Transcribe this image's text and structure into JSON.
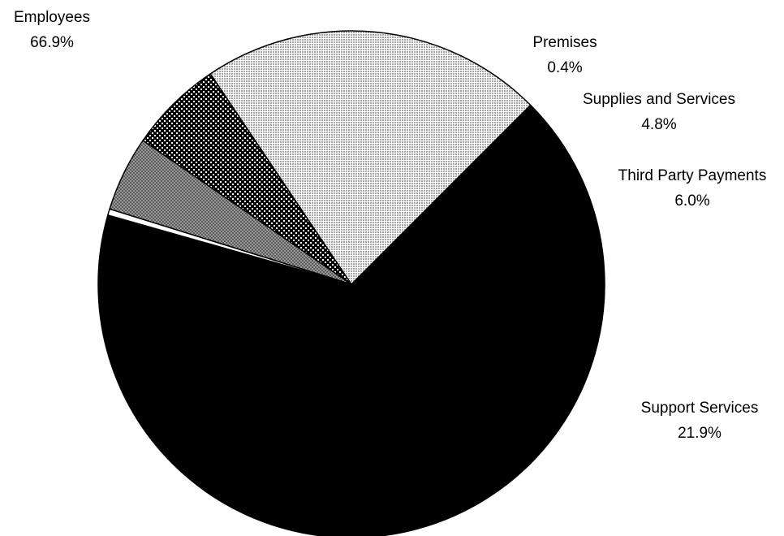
{
  "chart_data": {
    "type": "pie",
    "title": "",
    "categories": [
      "Employees",
      "Premises",
      "Supplies and Services",
      "Third Party Payments",
      "Support Services"
    ],
    "values": [
      66.9,
      0.4,
      4.8,
      6.0,
      21.9
    ],
    "value_labels": [
      "66.9%",
      "0.4%",
      "4.8%",
      "6.0%",
      "21.9%"
    ],
    "fills": [
      "solid-black",
      "white",
      "dark-gray-checker",
      "black-dots-on-white",
      "light-gray-dots"
    ],
    "colors": {
      "employees": "#000000",
      "premises": "#ffffff",
      "supplies": "#8c8c8c",
      "third_party": "#000000",
      "support": "#d4d4d4",
      "outline": "#000000"
    },
    "legend": "none",
    "start_angle_deg": -45,
    "direction": "clockwise"
  }
}
